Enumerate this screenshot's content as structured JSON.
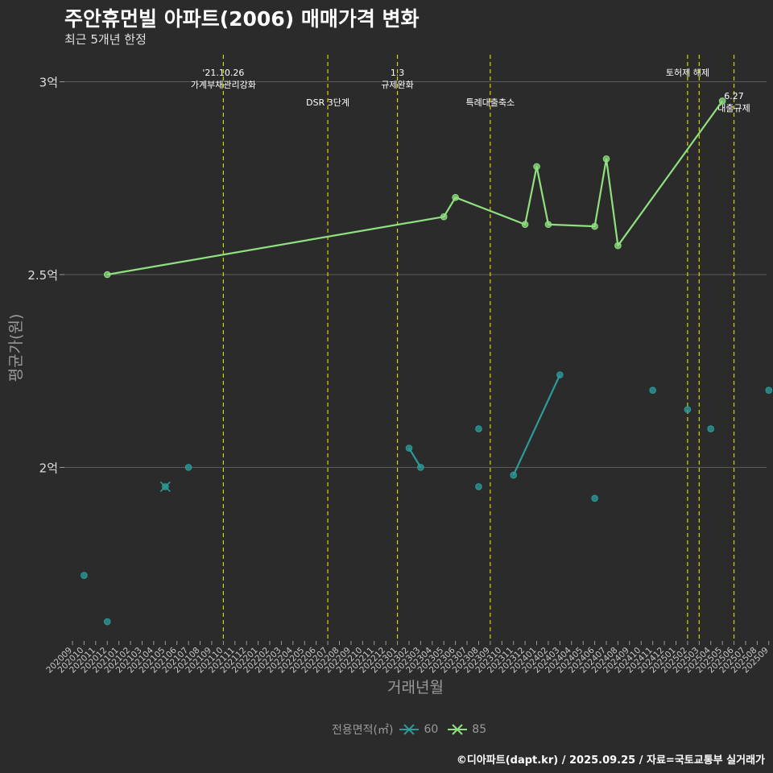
{
  "title": "주안휴먼빌 아파트(2006) 매매가격 변화",
  "subtitle": "최근 5개년 한정",
  "caption": "©디아파트(dapt.kr) / 2025.09.25 / 자료=국토교통부 실거래가",
  "legend": {
    "title": "전용면적(㎡)",
    "items": [
      {
        "label": "60",
        "color": "#2a9d9b"
      },
      {
        "label": "85",
        "color": "#8fe07f"
      }
    ]
  },
  "chart_data": {
    "type": "line",
    "xlabel": "거래년월",
    "ylabel": "평균가(원)",
    "ylim": [
      1.55,
      3.07
    ],
    "yticks": [
      {
        "value": 2.0,
        "label": "2억"
      },
      {
        "value": 2.5,
        "label": "2.5억"
      },
      {
        "value": 3.0,
        "label": "3억"
      }
    ],
    "x_categories": [
      "202009",
      "202010",
      "202011",
      "202012",
      "202101",
      "202102",
      "202103",
      "202104",
      "202105",
      "202106",
      "202107",
      "202108",
      "202109",
      "202110",
      "202111",
      "202112",
      "202201",
      "202202",
      "202203",
      "202204",
      "202205",
      "202206",
      "202207",
      "202208",
      "202209",
      "202210",
      "202211",
      "202212",
      "202301",
      "202302",
      "202303",
      "202304",
      "202305",
      "202306",
      "202307",
      "202308",
      "202309",
      "202310",
      "202311",
      "202312",
      "202401",
      "202402",
      "202403",
      "202404",
      "202405",
      "202406",
      "202407",
      "202408",
      "202409",
      "202410",
      "202411",
      "202412",
      "202501",
      "202502",
      "202503",
      "202504",
      "202505",
      "202506",
      "202507",
      "202508",
      "202509"
    ],
    "grid": true,
    "legend_position": "bottom",
    "series": [
      {
        "name": "60",
        "color": "#2a9d9b",
        "points": [
          {
            "x": "202010",
            "y": 1.72
          },
          {
            "x": "202012",
            "y": 1.6
          },
          {
            "x": "202105",
            "y": 1.95
          },
          {
            "x": "202107",
            "y": 2.0
          },
          {
            "x": "202302",
            "y": 2.05
          },
          {
            "x": "202303",
            "y": 2.0
          },
          {
            "x": "202308",
            "y": 2.1
          },
          {
            "x": "202308",
            "y": 1.95
          },
          {
            "x": "202311",
            "y": 1.98
          },
          {
            "x": "202403",
            "y": 2.24
          },
          {
            "x": "202406",
            "y": 1.92
          },
          {
            "x": "202411",
            "y": 2.2
          },
          {
            "x": "202502",
            "y": 2.15
          },
          {
            "x": "202504",
            "y": 2.1
          },
          {
            "x": "202509",
            "y": 2.2
          }
        ],
        "lines": [
          [
            {
              "x": "202302",
              "y": 2.05
            },
            {
              "x": "202303",
              "y": 2.0
            }
          ],
          [
            {
              "x": "202311",
              "y": 1.98
            },
            {
              "x": "202403",
              "y": 2.24
            }
          ]
        ]
      },
      {
        "name": "85",
        "color": "#8fe07f",
        "points": [
          {
            "x": "202012",
            "y": 2.5
          },
          {
            "x": "202305",
            "y": 2.65
          },
          {
            "x": "202306",
            "y": 2.7
          },
          {
            "x": "202312",
            "y": 2.63
          },
          {
            "x": "202401",
            "y": 2.78
          },
          {
            "x": "202402",
            "y": 2.63
          },
          {
            "x": "202406",
            "y": 2.625
          },
          {
            "x": "202407",
            "y": 2.8
          },
          {
            "x": "202408",
            "y": 2.575
          },
          {
            "x": "202505",
            "y": 2.95
          }
        ],
        "lines": [
          [
            {
              "x": "202012",
              "y": 2.5
            },
            {
              "x": "202305",
              "y": 2.65
            },
            {
              "x": "202306",
              "y": 2.7
            },
            {
              "x": "202312",
              "y": 2.63
            },
            {
              "x": "202401",
              "y": 2.78
            },
            {
              "x": "202402",
              "y": 2.63
            },
            {
              "x": "202406",
              "y": 2.625
            },
            {
              "x": "202407",
              "y": 2.8
            },
            {
              "x": "202408",
              "y": 2.575
            },
            {
              "x": "202505",
              "y": 2.95
            }
          ]
        ]
      }
    ],
    "events": [
      {
        "x": "202110",
        "lines": [
          "'21.10.26",
          "가계부채관리강화"
        ],
        "level": 0
      },
      {
        "x": "202207",
        "lines": [
          "DSR 3단계"
        ],
        "level": 1
      },
      {
        "x": "202301",
        "lines": [
          "1.3",
          "규제완화"
        ],
        "level": 0
      },
      {
        "x": "202309",
        "lines": [
          "특례대출축소"
        ],
        "level": 1
      },
      {
        "x": "202502",
        "lines": [
          "토허제 해제"
        ],
        "level": 0
      },
      {
        "x": "202503",
        "lines": [],
        "level": 0
      },
      {
        "x": "202506",
        "lines": [
          "6.27",
          "대출규제"
        ],
        "level": 2
      }
    ],
    "event_line_color": "#d4d400"
  }
}
